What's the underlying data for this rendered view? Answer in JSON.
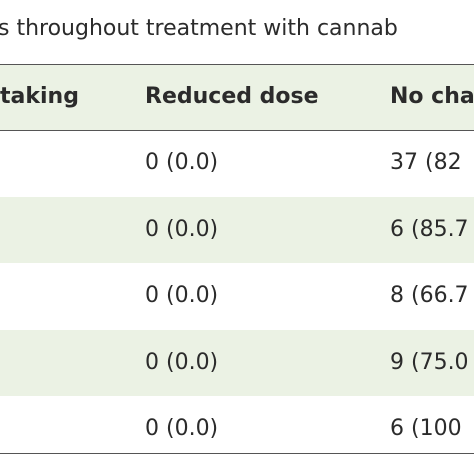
{
  "caption": "s throughout treatment with cannab",
  "table": {
    "header": [
      "taking",
      "Reduced dose",
      "No cha"
    ],
    "rows": [
      [
        "0 (0.0)",
        "37 (82"
      ],
      [
        "0 (0.0)",
        "6 (85.7"
      ],
      [
        "0 (0.0)",
        "8 (66.7"
      ],
      [
        "0 (0.0)",
        "9 (75.0"
      ],
      [
        "0 (0.0)",
        "6 (100"
      ]
    ]
  }
}
